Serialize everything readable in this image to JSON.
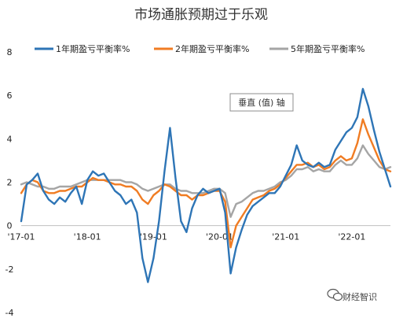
{
  "chart_data": {
    "type": "line",
    "title": "市场通胀预期过于乐观",
    "y_axis_badge": "垂直 (值) 轴",
    "ylim": [
      -4,
      8
    ],
    "yticks": [
      -4,
      -2,
      0,
      2,
      4,
      6,
      8
    ],
    "xlim": [
      "2017-01",
      "2022-08"
    ],
    "xticks": [
      {
        "label": "'17-01",
        "x": "2017-01"
      },
      {
        "label": "'18-01",
        "x": "2018-01"
      },
      {
        "label": "'19-01",
        "x": "2019-01"
      },
      {
        "label": "'20-01",
        "x": "2020-01"
      },
      {
        "label": "'21-01",
        "x": "2021-01"
      },
      {
        "label": "'22-01",
        "x": "2022-01"
      }
    ],
    "grid": false,
    "legend_position": "top",
    "series": [
      {
        "name": "1年期盈亏平衡率%",
        "color": "#2e75b6",
        "points": [
          [
            "2017-01",
            0.2
          ],
          [
            "2017-02",
            1.9
          ],
          [
            "2017-03",
            2.1
          ],
          [
            "2017-04",
            2.4
          ],
          [
            "2017-05",
            1.6
          ],
          [
            "2017-06",
            1.2
          ],
          [
            "2017-07",
            1.0
          ],
          [
            "2017-08",
            1.3
          ],
          [
            "2017-09",
            1.1
          ],
          [
            "2017-10",
            1.5
          ],
          [
            "2017-11",
            1.8
          ],
          [
            "2017-12",
            1.0
          ],
          [
            "2018-01",
            2.1
          ],
          [
            "2018-02",
            2.5
          ],
          [
            "2018-03",
            2.3
          ],
          [
            "2018-04",
            2.4
          ],
          [
            "2018-05",
            2.0
          ],
          [
            "2018-06",
            1.6
          ],
          [
            "2018-07",
            1.4
          ],
          [
            "2018-08",
            1.0
          ],
          [
            "2018-09",
            1.2
          ],
          [
            "2018-10",
            0.6
          ],
          [
            "2018-11",
            -1.5
          ],
          [
            "2018-12",
            -2.6
          ],
          [
            "2019-01",
            -1.5
          ],
          [
            "2019-02",
            0.2
          ],
          [
            "2019-03",
            2.5
          ],
          [
            "2019-04",
            4.5
          ],
          [
            "2019-05",
            2.2
          ],
          [
            "2019-06",
            0.2
          ],
          [
            "2019-07",
            -0.3
          ],
          [
            "2019-08",
            0.8
          ],
          [
            "2019-09",
            1.4
          ],
          [
            "2019-10",
            1.7
          ],
          [
            "2019-11",
            1.5
          ],
          [
            "2019-12",
            1.6
          ],
          [
            "2020-01",
            1.7
          ],
          [
            "2020-02",
            0.6
          ],
          [
            "2020-03",
            -2.2
          ],
          [
            "2020-04",
            -1.0
          ],
          [
            "2020-05",
            -0.2
          ],
          [
            "2020-06",
            0.5
          ],
          [
            "2020-07",
            0.9
          ],
          [
            "2020-08",
            1.1
          ],
          [
            "2020-09",
            1.3
          ],
          [
            "2020-10",
            1.5
          ],
          [
            "2020-11",
            1.5
          ],
          [
            "2020-12",
            1.8
          ],
          [
            "2021-01",
            2.3
          ],
          [
            "2021-02",
            2.8
          ],
          [
            "2021-03",
            3.7
          ],
          [
            "2021-04",
            3.0
          ],
          [
            "2021-05",
            2.8
          ],
          [
            "2021-06",
            2.7
          ],
          [
            "2021-07",
            2.9
          ],
          [
            "2021-08",
            2.7
          ],
          [
            "2021-09",
            2.8
          ],
          [
            "2021-10",
            3.5
          ],
          [
            "2021-11",
            3.9
          ],
          [
            "2021-12",
            4.3
          ],
          [
            "2022-01",
            4.5
          ],
          [
            "2022-02",
            5.0
          ],
          [
            "2022-03",
            6.3
          ],
          [
            "2022-04",
            5.5
          ],
          [
            "2022-05",
            4.4
          ],
          [
            "2022-06",
            3.4
          ],
          [
            "2022-07",
            2.6
          ],
          [
            "2022-08",
            1.8
          ]
        ]
      },
      {
        "name": "2年期盈亏平衡率%",
        "color": "#f07c23",
        "points": [
          [
            "2017-01",
            1.5
          ],
          [
            "2017-02",
            1.9
          ],
          [
            "2017-03",
            2.1
          ],
          [
            "2017-04",
            2.0
          ],
          [
            "2017-05",
            1.6
          ],
          [
            "2017-06",
            1.5
          ],
          [
            "2017-07",
            1.5
          ],
          [
            "2017-08",
            1.6
          ],
          [
            "2017-09",
            1.6
          ],
          [
            "2017-10",
            1.7
          ],
          [
            "2017-11",
            1.8
          ],
          [
            "2017-12",
            1.8
          ],
          [
            "2018-01",
            2.0
          ],
          [
            "2018-02",
            2.2
          ],
          [
            "2018-03",
            2.1
          ],
          [
            "2018-04",
            2.1
          ],
          [
            "2018-05",
            2.0
          ],
          [
            "2018-06",
            1.9
          ],
          [
            "2018-07",
            1.9
          ],
          [
            "2018-08",
            1.8
          ],
          [
            "2018-09",
            1.8
          ],
          [
            "2018-10",
            1.6
          ],
          [
            "2018-11",
            1.2
          ],
          [
            "2018-12",
            1.0
          ],
          [
            "2019-01",
            1.4
          ],
          [
            "2019-02",
            1.6
          ],
          [
            "2019-03",
            1.9
          ],
          [
            "2019-04",
            1.8
          ],
          [
            "2019-05",
            1.6
          ],
          [
            "2019-06",
            1.4
          ],
          [
            "2019-07",
            1.4
          ],
          [
            "2019-08",
            1.2
          ],
          [
            "2019-09",
            1.4
          ],
          [
            "2019-10",
            1.4
          ],
          [
            "2019-11",
            1.5
          ],
          [
            "2019-12",
            1.6
          ],
          [
            "2020-01",
            1.6
          ],
          [
            "2020-02",
            1.1
          ],
          [
            "2020-03",
            -1.0
          ],
          [
            "2020-04",
            0.0
          ],
          [
            "2020-05",
            0.4
          ],
          [
            "2020-06",
            0.8
          ],
          [
            "2020-07",
            1.2
          ],
          [
            "2020-08",
            1.3
          ],
          [
            "2020-09",
            1.4
          ],
          [
            "2020-10",
            1.6
          ],
          [
            "2020-11",
            1.7
          ],
          [
            "2020-12",
            1.9
          ],
          [
            "2021-01",
            2.2
          ],
          [
            "2021-02",
            2.5
          ],
          [
            "2021-03",
            2.8
          ],
          [
            "2021-04",
            2.8
          ],
          [
            "2021-05",
            2.9
          ],
          [
            "2021-06",
            2.7
          ],
          [
            "2021-07",
            2.8
          ],
          [
            "2021-08",
            2.6
          ],
          [
            "2021-09",
            2.7
          ],
          [
            "2021-10",
            3.0
          ],
          [
            "2021-11",
            3.2
          ],
          [
            "2021-12",
            3.0
          ],
          [
            "2022-01",
            3.1
          ],
          [
            "2022-02",
            3.8
          ],
          [
            "2022-03",
            4.9
          ],
          [
            "2022-04",
            4.2
          ],
          [
            "2022-05",
            3.6
          ],
          [
            "2022-06",
            3.0
          ],
          [
            "2022-07",
            2.6
          ],
          [
            "2022-08",
            2.5
          ]
        ]
      },
      {
        "name": "5年期盈亏平衡率%",
        "color": "#a5a5a5",
        "points": [
          [
            "2017-01",
            1.9
          ],
          [
            "2017-02",
            2.0
          ],
          [
            "2017-03",
            1.9
          ],
          [
            "2017-04",
            1.8
          ],
          [
            "2017-05",
            1.8
          ],
          [
            "2017-06",
            1.7
          ],
          [
            "2017-07",
            1.7
          ],
          [
            "2017-08",
            1.8
          ],
          [
            "2017-09",
            1.8
          ],
          [
            "2017-10",
            1.8
          ],
          [
            "2017-11",
            1.9
          ],
          [
            "2017-12",
            2.0
          ],
          [
            "2018-01",
            2.1
          ],
          [
            "2018-02",
            2.1
          ],
          [
            "2018-03",
            2.1
          ],
          [
            "2018-04",
            2.1
          ],
          [
            "2018-05",
            2.1
          ],
          [
            "2018-06",
            2.1
          ],
          [
            "2018-07",
            2.1
          ],
          [
            "2018-08",
            2.0
          ],
          [
            "2018-09",
            2.0
          ],
          [
            "2018-10",
            1.9
          ],
          [
            "2018-11",
            1.7
          ],
          [
            "2018-12",
            1.6
          ],
          [
            "2019-01",
            1.7
          ],
          [
            "2019-02",
            1.8
          ],
          [
            "2019-03",
            1.9
          ],
          [
            "2019-04",
            1.9
          ],
          [
            "2019-05",
            1.7
          ],
          [
            "2019-06",
            1.6
          ],
          [
            "2019-07",
            1.6
          ],
          [
            "2019-08",
            1.5
          ],
          [
            "2019-09",
            1.5
          ],
          [
            "2019-10",
            1.5
          ],
          [
            "2019-11",
            1.6
          ],
          [
            "2019-12",
            1.7
          ],
          [
            "2020-01",
            1.7
          ],
          [
            "2020-02",
            1.5
          ],
          [
            "2020-03",
            0.4
          ],
          [
            "2020-04",
            1.0
          ],
          [
            "2020-05",
            1.1
          ],
          [
            "2020-06",
            1.3
          ],
          [
            "2020-07",
            1.5
          ],
          [
            "2020-08",
            1.6
          ],
          [
            "2020-09",
            1.6
          ],
          [
            "2020-10",
            1.7
          ],
          [
            "2020-11",
            1.8
          ],
          [
            "2020-12",
            2.0
          ],
          [
            "2021-01",
            2.1
          ],
          [
            "2021-02",
            2.3
          ],
          [
            "2021-03",
            2.6
          ],
          [
            "2021-04",
            2.6
          ],
          [
            "2021-05",
            2.7
          ],
          [
            "2021-06",
            2.5
          ],
          [
            "2021-07",
            2.6
          ],
          [
            "2021-08",
            2.5
          ],
          [
            "2021-09",
            2.5
          ],
          [
            "2021-10",
            2.8
          ],
          [
            "2021-11",
            3.0
          ],
          [
            "2021-12",
            2.8
          ],
          [
            "2022-01",
            2.8
          ],
          [
            "2022-02",
            3.1
          ],
          [
            "2022-03",
            3.7
          ],
          [
            "2022-04",
            3.3
          ],
          [
            "2022-05",
            3.0
          ],
          [
            "2022-06",
            2.7
          ],
          [
            "2022-07",
            2.6
          ],
          [
            "2022-08",
            2.7
          ]
        ]
      }
    ]
  },
  "watermark": {
    "text": "财经智识",
    "icon": "wechat-icon"
  }
}
